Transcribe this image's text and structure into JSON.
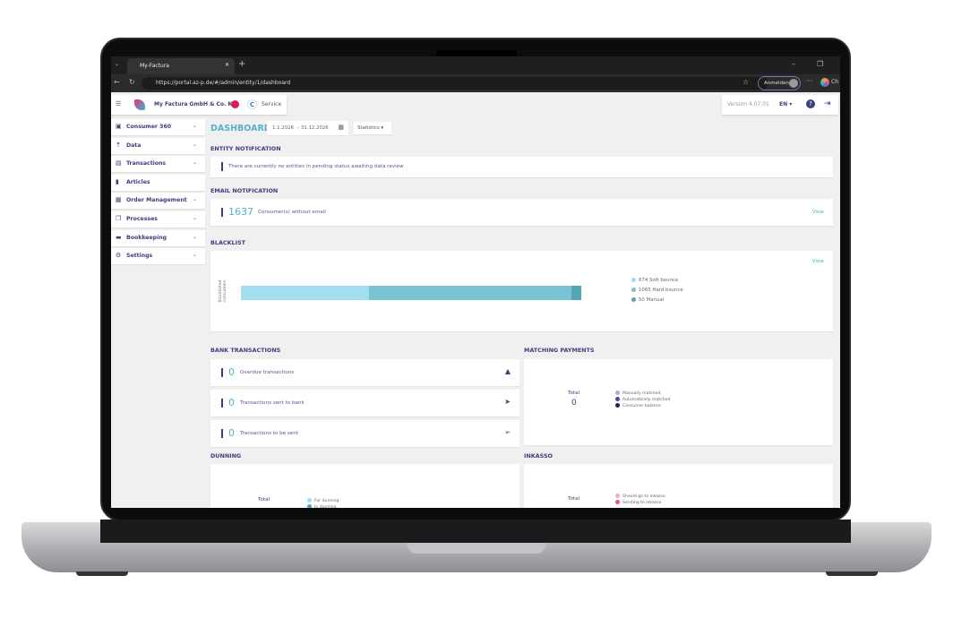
{
  "browser": {
    "tab_title": "My-Factura",
    "url": "https://portal.az-p.de/#/admin/entity/1/dashboard",
    "signin_label": "Anmelden",
    "copilot_label": "Ch"
  },
  "header": {
    "company": "My Factura GmbH & Co. KG",
    "service_label": "Service",
    "version": "Version 4.07.01",
    "language": "EN"
  },
  "sidebar": {
    "items": [
      {
        "label": "Consumer 360",
        "icon": "id-card-icon",
        "expandable": true
      },
      {
        "label": "Data",
        "icon": "upload-icon",
        "expandable": true
      },
      {
        "label": "Transactions",
        "icon": "money-icon",
        "expandable": true
      },
      {
        "label": "Articles",
        "icon": "document-icon",
        "expandable": false
      },
      {
        "label": "Order Management",
        "icon": "receipt-icon",
        "expandable": true
      },
      {
        "label": "Processes",
        "icon": "copy-icon",
        "expandable": true
      },
      {
        "label": "Bookkeeping",
        "icon": "folder-icon",
        "expandable": true
      },
      {
        "label": "Settings",
        "icon": "gear-icon",
        "expandable": true
      }
    ]
  },
  "dashboard": {
    "title": "DASHBOARD",
    "date_from": "1.1.2026",
    "date_to": "31.12.2026",
    "date_sep": "–",
    "view_select": "Statistics"
  },
  "entity_notification": {
    "heading": "ENTITY NOTIFICATION",
    "text": "There are currently no entities in pending status awaiting data review"
  },
  "email_notification": {
    "heading": "EMAIL NOTIFICATION",
    "count": "1637",
    "text": "Consumer(s) without email",
    "view": "View"
  },
  "blacklist": {
    "heading": "BLACKLIST",
    "view": "View",
    "axis_label": "Blacklisted consumers",
    "legend": [
      {
        "label": "674 Soft bounce",
        "value": 674,
        "color": "#a3deef"
      },
      {
        "label": "1065 Hard bounce",
        "value": 1065,
        "color": "#7ac3d3"
      },
      {
        "label": "50 Manual",
        "value": 50,
        "color": "#55a5b8"
      }
    ]
  },
  "bank_transactions": {
    "heading": "BANK TRANSACTIONS",
    "items": [
      {
        "count": "0",
        "label": "Overdue transactions",
        "icon": "warning-icon"
      },
      {
        "count": "0",
        "label": "Transactions sent to bank",
        "icon": "send-icon"
      },
      {
        "count": "0",
        "label": "Transactions to be sent",
        "icon": "pending-send-icon"
      }
    ]
  },
  "matching_payments": {
    "heading": "MATCHING PAYMENTS",
    "total_label": "Total",
    "total": "0",
    "legend": [
      {
        "label": "Manually matched",
        "color": "#a9a9e8"
      },
      {
        "label": "Automatically matched",
        "color": "#4b4b9a"
      },
      {
        "label": "Consumer balance",
        "color": "#23234f"
      }
    ]
  },
  "dunning": {
    "heading": "DUNNING",
    "total_label": "Total",
    "legend": [
      {
        "label": "For dunning",
        "color": "#9fdcef"
      },
      {
        "label": "In dunning",
        "color": "#4aa7c0"
      }
    ]
  },
  "inkasso": {
    "heading": "INKASSO",
    "total_label": "Total",
    "legend": [
      {
        "label": "Should go to inkasso",
        "color": "#f6a5c6"
      },
      {
        "label": "Sending to inkasso",
        "color": "#ec4f8c"
      }
    ]
  }
}
